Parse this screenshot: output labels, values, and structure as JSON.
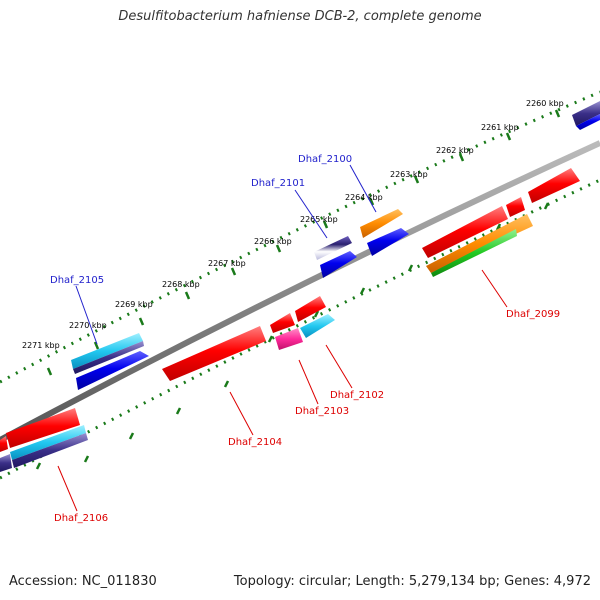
{
  "title": "Desulfitobacterium hafniense DCB-2, complete genome",
  "footer": {
    "accession": "Accession: NC_011830",
    "summary": "Topology: circular; Length: 5,279,134 bp; Genes: 4,972"
  },
  "scale_labels": [
    "2260 kbp",
    "2261 kbp",
    "2262 kbp",
    "2263 kbp",
    "2264 kbp",
    "2265 kbp",
    "2266 kbp",
    "2267 kbp",
    "2268 kbp",
    "2269 kbp",
    "2270 kbp",
    "2271 kbp"
  ],
  "gene_labels": {
    "dhaf_2099": "Dhaf_2099",
    "dhaf_2100": "Dhaf_2100",
    "dhaf_2101": "Dhaf_2101",
    "dhaf_2102": "Dhaf_2102",
    "dhaf_2103": "Dhaf_2103",
    "dhaf_2104": "Dhaf_2104",
    "dhaf_2105": "Dhaf_2105",
    "dhaf_2106": "Dhaf_2106"
  },
  "colors": {
    "red": "#ff0000",
    "blue": "#0000ee",
    "orange": "#ff8c00",
    "cyan": "#22c8f0",
    "navy": "#3a2f88",
    "green": "#22c822",
    "magenta": "#ff2a9a",
    "tick": "#1a7a1a",
    "backbone": "#888888",
    "label_blue": "#2222cc",
    "label_red": "#dd0000"
  }
}
